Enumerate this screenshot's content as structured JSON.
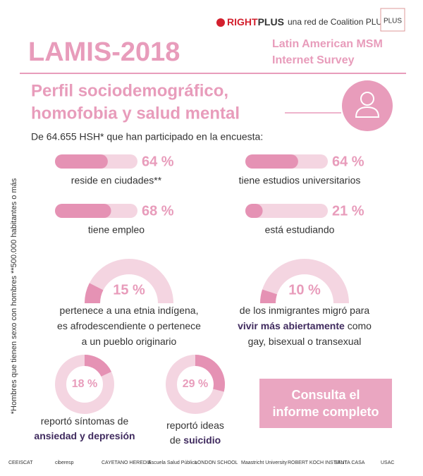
{
  "header": {
    "brand_parts": [
      "RIGHT",
      "PLUS"
    ],
    "brand_sub": "una red de Coalition PLUS",
    "logo": "PLUS",
    "title": "LAMIS-2018",
    "survey": [
      "Latin American MSM",
      "Internet Survey"
    ]
  },
  "subtitle": [
    "Perfil sociodemográfico,",
    "homofobia y salud mental"
  ],
  "intro": "De 64.655 HSH* que han participado en la encuesta:",
  "bars": [
    {
      "value": 64,
      "value_label": "64 %",
      "caption": "reside en ciudades**"
    },
    {
      "value": 64,
      "value_label": "64 %",
      "caption": "tiene estudios universitarios"
    },
    {
      "value": 68,
      "value_label": "68 %",
      "caption": "tiene empleo"
    },
    {
      "value": 21,
      "value_label": "21 %",
      "caption": "está estudiando"
    }
  ],
  "half_gauges": [
    {
      "value": 15,
      "value_label": "15 %",
      "caption": [
        [
          {
            "text": "pertenece a una etnia indígena,"
          }
        ],
        [
          {
            "text": "es afrodescendiente o pertenece"
          }
        ],
        [
          {
            "text": "a un pueblo originario"
          }
        ]
      ]
    },
    {
      "value": 10,
      "value_label": "10 %",
      "caption": [
        [
          {
            "text": "de los inmigrantes migró para"
          }
        ],
        [
          {
            "text": "vivir más abiertamente",
            "bold": true
          },
          {
            "text": " como"
          }
        ],
        [
          {
            "text": "gay, bisexual o transexual"
          }
        ]
      ]
    }
  ],
  "donuts": [
    {
      "value": 18,
      "value_label": "18 %",
      "caption": [
        [
          {
            "text": "reportó síntomas de"
          }
        ],
        [
          {
            "text": "ansiedad y depresión",
            "bold": true
          }
        ]
      ]
    },
    {
      "value": 29,
      "value_label": "29 %",
      "caption": [
        [
          {
            "text": "reportó ideas"
          }
        ],
        [
          {
            "text": "de"
          },
          {
            "text": " suicidio",
            "bold": true
          }
        ]
      ]
    }
  ],
  "button": [
    "Consulta el",
    "informe completo"
  ],
  "footnote": "*Hombres que tienen sexo con hombres  **500.000 habitantes o más",
  "footer_logos": [
    "CEEISCAT",
    "ciberesp",
    "CAYETANO HEREDIA",
    "Escuela Salud Pública",
    "LONDON SCHOOL",
    "Maastricht University",
    "ROBERT KOCH INSTITUT",
    "SANTA CASA",
    "USAC"
  ]
}
